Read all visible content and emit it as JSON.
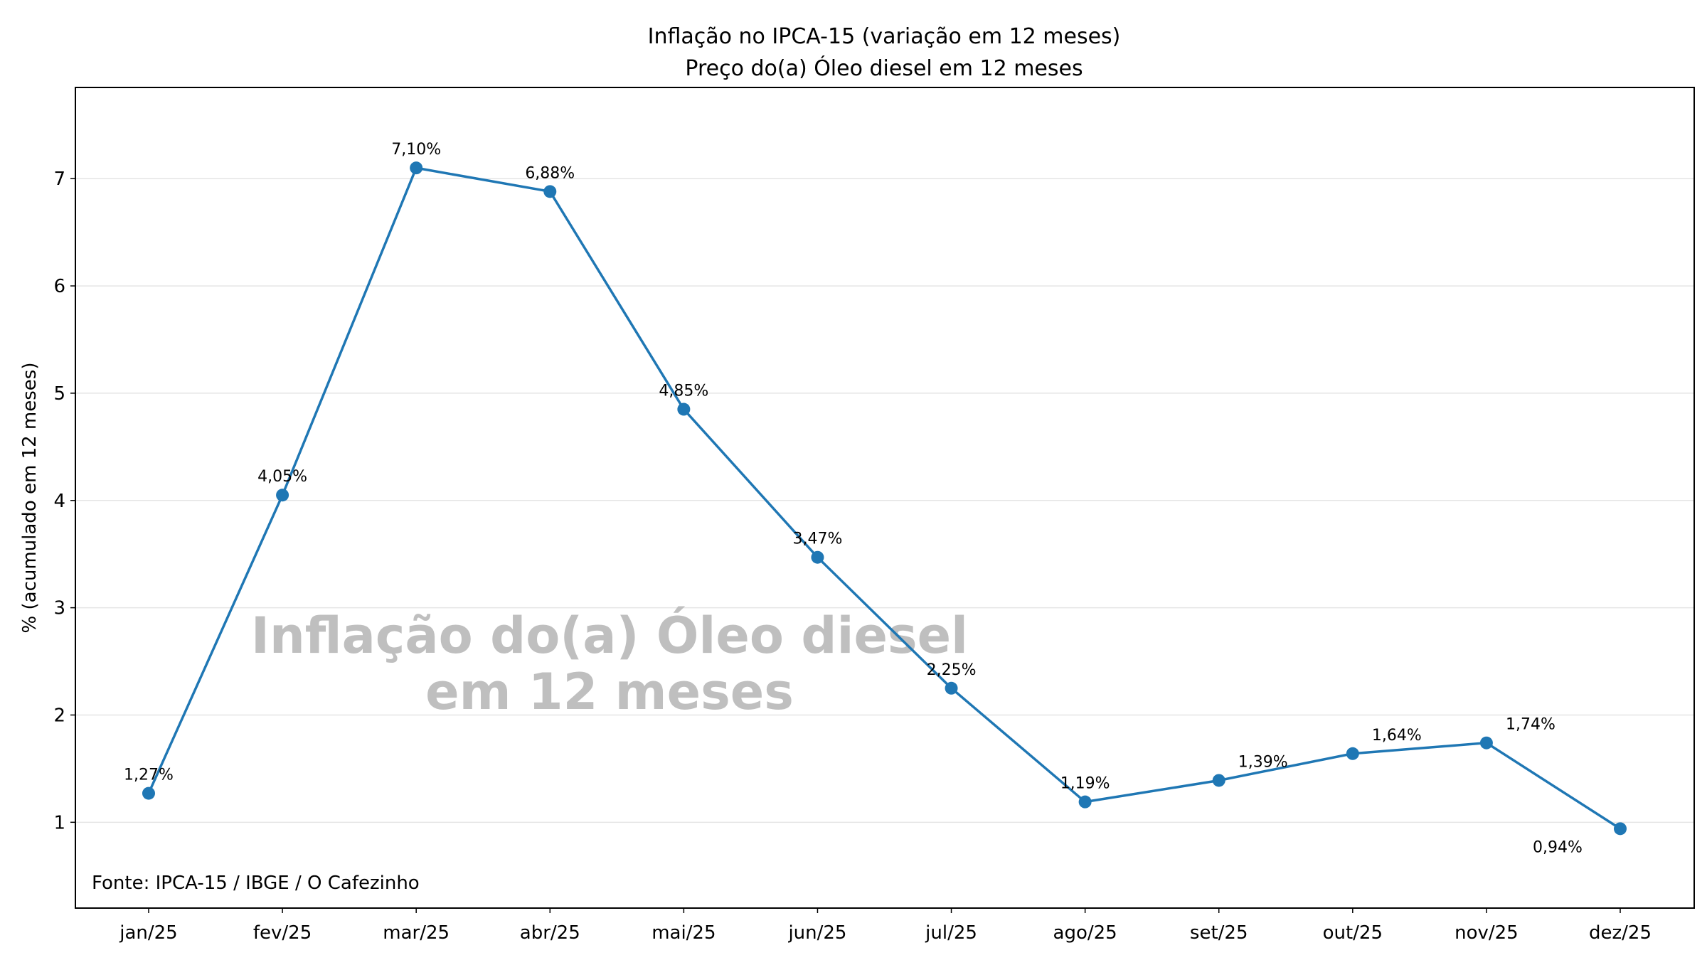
{
  "chart_data": {
    "type": "line",
    "title": "Inflação no IPCA-15 (variação em 12 meses)",
    "subtitle": "Preço do(a) Óleo diesel em 12 meses",
    "xlabel": "",
    "ylabel": "% (acumulado em 12 meses)",
    "categories": [
      "jan/25",
      "fev/25",
      "mar/25",
      "abr/25",
      "mai/25",
      "jun/25",
      "jul/25",
      "ago/25",
      "set/25",
      "out/25",
      "nov/25",
      "dez/25"
    ],
    "series": [
      {
        "name": "Óleo diesel",
        "color": "#1f77b4",
        "values": [
          1.27,
          4.05,
          7.1,
          6.88,
          4.85,
          3.47,
          2.25,
          1.19,
          1.39,
          1.64,
          1.74,
          0.94
        ],
        "labels": [
          "1,27%",
          "4,05%",
          "7,10%",
          "6,88%",
          "4,85%",
          "3,47%",
          "2,25%",
          "1,19%",
          "1,39%",
          "1,64%",
          "1,74%",
          "0,94%"
        ]
      }
    ],
    "ylim": [
      0.2,
      7.85
    ],
    "yticks": [
      1,
      2,
      3,
      4,
      5,
      6,
      7
    ],
    "grid": "horizontal",
    "watermark": [
      "Inflação do(a) Óleo diesel",
      "em 12 meses"
    ],
    "source": "Fonte: IPCA-15 / IBGE / O Cafezinho"
  }
}
